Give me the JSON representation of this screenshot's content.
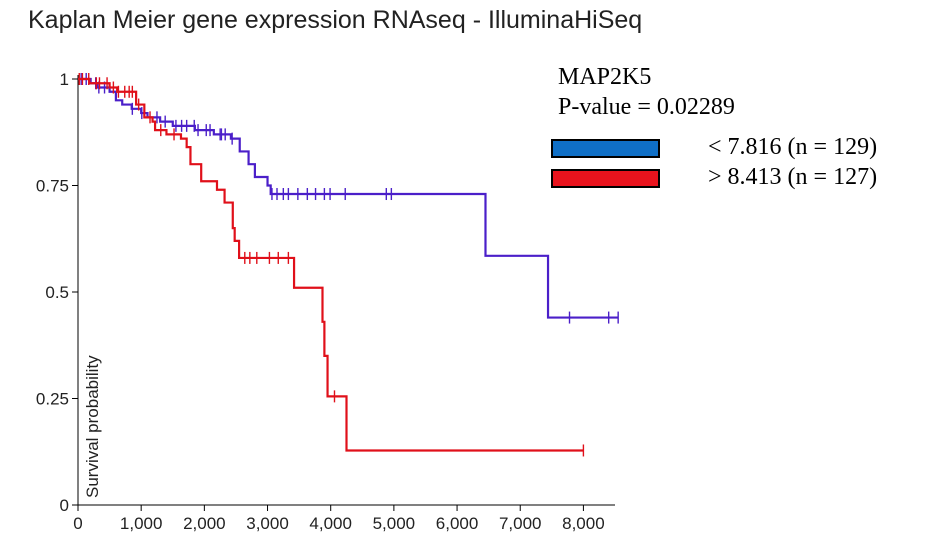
{
  "title": "Kaplan Meier gene expression RNAseq - IlluminaHiSeq",
  "legend": {
    "gene": "MAP2K5",
    "pvalue": "P-value = 0.02289",
    "entries": [
      {
        "label": "< 7.816 (n = 129)",
        "color": "#0f6fc6"
      },
      {
        "label": "> 8.413 (n = 127)",
        "color": "#e8131d"
      }
    ]
  },
  "chart_data": {
    "type": "line",
    "step": "post",
    "title": "Kaplan Meier gene expression RNAseq - IlluminaHiSeq",
    "xlabel": "",
    "ylabel": "Survival probability",
    "xlim": [
      0,
      8500
    ],
    "ylim": [
      0,
      1
    ],
    "xticks": [
      0,
      1000,
      2000,
      3000,
      4000,
      5000,
      6000,
      7000,
      8000
    ],
    "xtick_labels": [
      "0",
      "1,000",
      "2,000",
      "3,000",
      "4,000",
      "5,000",
      "6,000",
      "7,000",
      "8,000"
    ],
    "yticks": [
      0,
      0.25,
      0.5,
      0.75,
      1
    ],
    "ytick_labels": [
      "0",
      "0.25",
      "0.5",
      "0.75",
      "1"
    ],
    "grid": false,
    "legend_position": "top-right",
    "series": [
      {
        "color": "#4b1fc9",
        "legend_label": "< 7.816 (n = 129)",
        "x": [
          0,
          200,
          300,
          500,
          600,
          700,
          850,
          1000,
          1100,
          1200,
          1300,
          1400,
          1500,
          1600,
          1700,
          1850,
          2000,
          2150,
          2300,
          2420,
          2560,
          2700,
          2800,
          3000,
          3050,
          3120,
          6450,
          7440,
          8550
        ],
        "y": [
          1,
          0.99,
          0.98,
          0.97,
          0.95,
          0.94,
          0.93,
          0.92,
          0.91,
          0.91,
          0.9,
          0.9,
          0.89,
          0.89,
          0.89,
          0.88,
          0.88,
          0.87,
          0.87,
          0.86,
          0.83,
          0.8,
          0.77,
          0.75,
          0.73,
          0.73,
          0.585,
          0.44,
          0.44
        ],
        "censor_x": [
          50,
          130,
          280,
          330,
          420,
          860,
          1010,
          1250,
          1380,
          1550,
          1640,
          1720,
          1840,
          1900,
          2030,
          2090,
          2250,
          2270,
          2330,
          2440,
          3070,
          3150,
          3250,
          3330,
          3480,
          3630,
          3760,
          3900,
          3990,
          4230,
          4880,
          4960,
          7780,
          8400,
          8550
        ]
      },
      {
        "color": "#e0101a",
        "legend_label": "> 8.413 (n = 127)",
        "x": [
          0,
          180,
          500,
          620,
          920,
          1050,
          1180,
          1220,
          1400,
          1630,
          1720,
          1780,
          1950,
          2200,
          2320,
          2450,
          2480,
          2550,
          3420,
          3870,
          3900,
          3950,
          4250,
          8000
        ],
        "y": [
          1,
          0.99,
          0.98,
          0.97,
          0.94,
          0.91,
          0.9,
          0.88,
          0.87,
          0.86,
          0.84,
          0.8,
          0.76,
          0.74,
          0.71,
          0.65,
          0.62,
          0.58,
          0.51,
          0.43,
          0.35,
          0.255,
          0.128,
          0.128
        ],
        "censor_x": [
          20,
          70,
          170,
          290,
          340,
          460,
          560,
          640,
          740,
          810,
          860,
          960,
          1140,
          1310,
          1520,
          2640,
          2720,
          2830,
          3030,
          3170,
          3330,
          4060,
          8000
        ]
      }
    ]
  }
}
